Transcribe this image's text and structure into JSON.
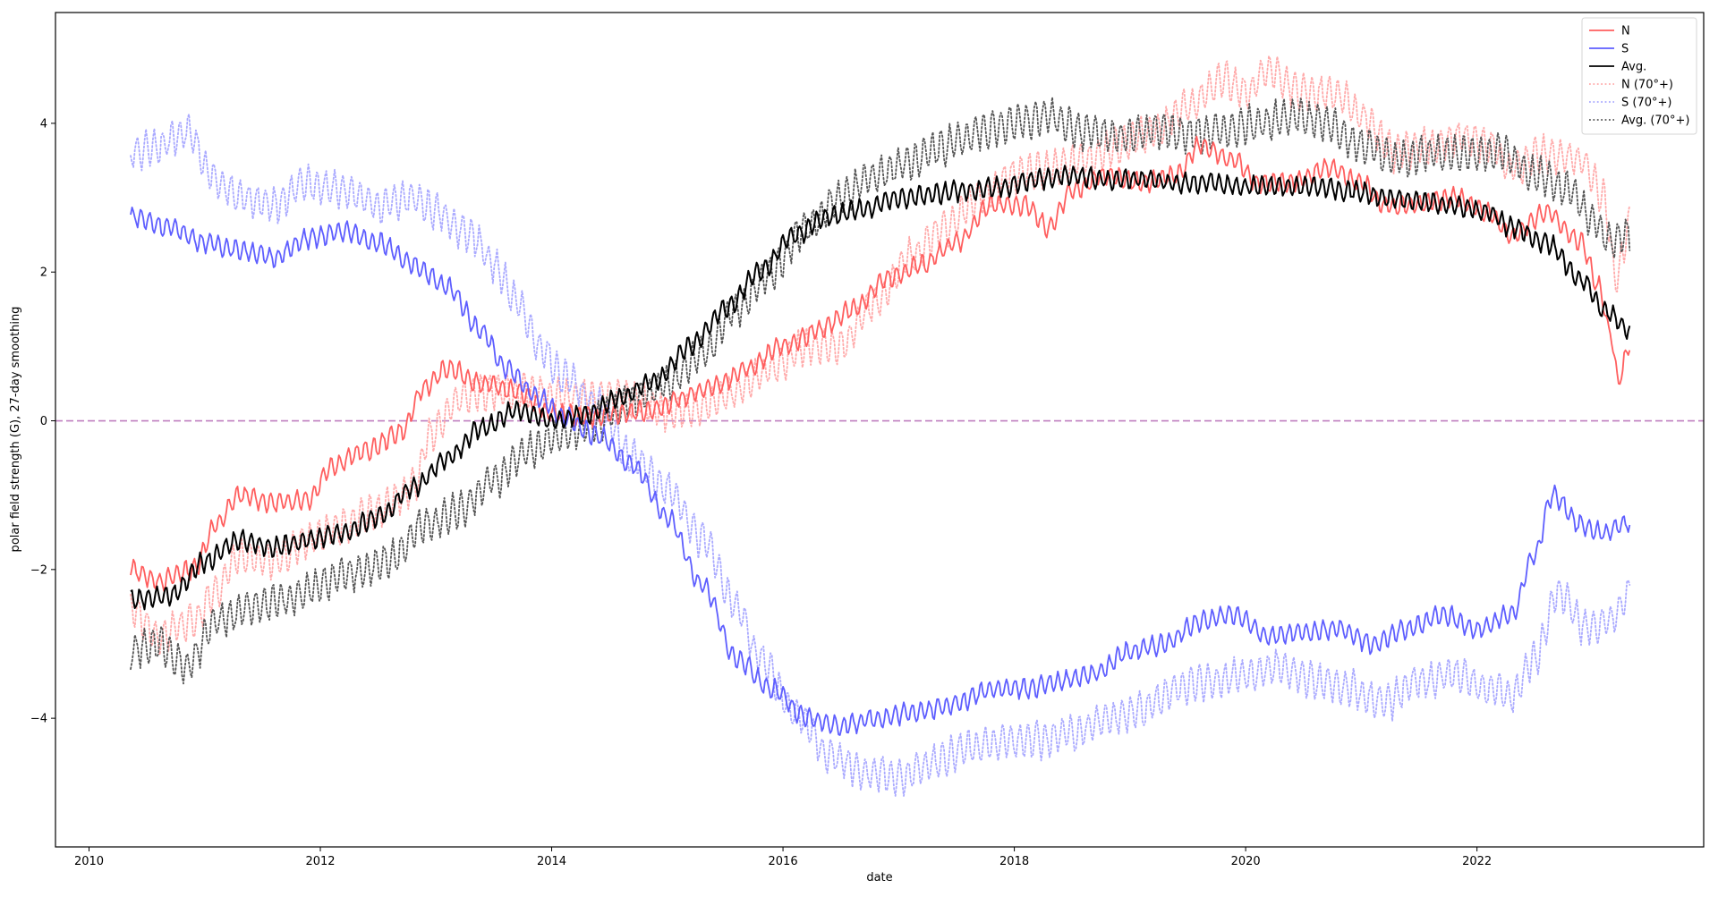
{
  "chart_data": {
    "type": "line",
    "title": "",
    "xlabel": "date",
    "ylabel": "polar field strength (G), 27-day smoothing",
    "xlim": [
      2009.71,
      2023.96
    ],
    "ylim": [
      -5.73,
      5.49
    ],
    "x_ticks": [
      2010,
      2012,
      2014,
      2016,
      2018,
      2020,
      2022
    ],
    "x_tick_labels": [
      "2010",
      "2012",
      "2014",
      "2016",
      "2018",
      "2020",
      "2022"
    ],
    "y_ticks": [
      -4,
      -2,
      0,
      2,
      4
    ],
    "y_tick_labels": [
      "−4",
      "−2",
      "0",
      "2",
      "4"
    ],
    "grid": false,
    "legend_position": "upper right",
    "reference_line": {
      "y": 0,
      "style": "dashed",
      "color": "#bf7fbf"
    },
    "series": [
      {
        "name": "N",
        "color": "#ff5e5e",
        "style": "solid",
        "width": 1.8,
        "x": [
          2010.36,
          2010.6,
          2010.9,
          2011.1,
          2011.3,
          2011.6,
          2011.9,
          2012.1,
          2012.4,
          2012.7,
          2012.9,
          2013.1,
          2013.4,
          2013.7,
          2014.0,
          2014.3,
          2014.6,
          2014.9,
          2015.1,
          2015.4,
          2015.7,
          2016.0,
          2016.3,
          2016.6,
          2016.9,
          2017.2,
          2017.5,
          2017.8,
          2018.1,
          2018.3,
          2018.5,
          2018.8,
          2019.1,
          2019.4,
          2019.6,
          2019.9,
          2020.1,
          2020.4,
          2020.7,
          2021.0,
          2021.2,
          2021.5,
          2021.8,
          2022.1,
          2022.3,
          2022.6,
          2022.9,
          2023.05,
          2023.15,
          2023.22,
          2023.33
        ],
        "values": [
          -2.0,
          -2.15,
          -2.0,
          -1.4,
          -1.0,
          -1.1,
          -1.05,
          -0.6,
          -0.4,
          -0.15,
          0.45,
          0.7,
          0.5,
          0.4,
          0.1,
          0.05,
          0.1,
          0.15,
          0.3,
          0.45,
          0.7,
          1.0,
          1.2,
          1.5,
          1.9,
          2.1,
          2.4,
          2.9,
          2.9,
          2.6,
          3.1,
          3.3,
          3.2,
          3.3,
          3.7,
          3.5,
          3.2,
          3.2,
          3.4,
          3.2,
          2.9,
          2.9,
          3.0,
          2.8,
          2.5,
          2.8,
          2.4,
          1.8,
          1.2,
          0.55,
          1.05
        ]
      },
      {
        "name": "S",
        "color": "#5e5eff",
        "style": "solid",
        "width": 1.8,
        "x": [
          2010.36,
          2010.7,
          2011.0,
          2011.3,
          2011.6,
          2011.9,
          2012.2,
          2012.5,
          2012.8,
          2013.1,
          2013.4,
          2013.6,
          2013.9,
          2014.1,
          2014.4,
          2014.7,
          2015.0,
          2015.3,
          2015.6,
          2015.9,
          2016.2,
          2016.5,
          2016.8,
          2017.2,
          2017.5,
          2017.8,
          2018.1,
          2018.4,
          2018.7,
          2019.0,
          2019.3,
          2019.6,
          2019.9,
          2020.2,
          2020.5,
          2020.8,
          2021.1,
          2021.4,
          2021.7,
          2022.0,
          2022.3,
          2022.5,
          2022.65,
          2022.9,
          2023.1,
          2023.33
        ],
        "values": [
          2.75,
          2.6,
          2.4,
          2.3,
          2.2,
          2.45,
          2.55,
          2.4,
          2.1,
          1.8,
          1.2,
          0.7,
          0.3,
          0.05,
          -0.2,
          -0.6,
          -1.3,
          -2.2,
          -3.2,
          -3.6,
          -4.0,
          -4.1,
          -4.0,
          -3.9,
          -3.8,
          -3.6,
          -3.6,
          -3.5,
          -3.4,
          -3.1,
          -3.0,
          -2.7,
          -2.6,
          -2.9,
          -2.85,
          -2.8,
          -3.0,
          -2.8,
          -2.6,
          -2.8,
          -2.6,
          -1.8,
          -1.0,
          -1.4,
          -1.5,
          -1.35
        ]
      },
      {
        "name": "Avg.",
        "color": "#000000",
        "style": "solid",
        "width": 2.0,
        "x": [
          2010.36,
          2010.7,
          2011.0,
          2011.3,
          2011.6,
          2011.9,
          2012.2,
          2012.5,
          2012.8,
          2013.1,
          2013.4,
          2013.7,
          2014.0,
          2014.3,
          2014.6,
          2014.9,
          2015.2,
          2015.5,
          2015.8,
          2016.1,
          2016.4,
          2016.7,
          2017.0,
          2017.3,
          2017.6,
          2017.9,
          2018.2,
          2018.5,
          2018.8,
          2019.1,
          2019.4,
          2019.7,
          2020.0,
          2020.3,
          2020.6,
          2020.9,
          2021.2,
          2021.5,
          2021.8,
          2022.1,
          2022.3,
          2022.6,
          2022.9,
          2023.1,
          2023.33
        ],
        "values": [
          -2.4,
          -2.35,
          -1.9,
          -1.6,
          -1.7,
          -1.6,
          -1.5,
          -1.3,
          -0.9,
          -0.5,
          -0.1,
          0.15,
          0.0,
          0.1,
          0.3,
          0.55,
          1.0,
          1.5,
          2.0,
          2.5,
          2.75,
          2.85,
          3.0,
          3.05,
          3.1,
          3.15,
          3.25,
          3.3,
          3.25,
          3.25,
          3.2,
          3.2,
          3.15,
          3.15,
          3.15,
          3.1,
          3.0,
          2.95,
          2.9,
          2.8,
          2.6,
          2.4,
          1.9,
          1.5,
          1.2
        ]
      },
      {
        "name": "N (70°+)",
        "color": "#ffaaaa",
        "style": "dotted",
        "width": 1.8,
        "x": [
          2010.36,
          2010.6,
          2010.9,
          2011.1,
          2011.3,
          2011.6,
          2011.9,
          2012.2,
          2012.5,
          2012.8,
          2012.95,
          2013.2,
          2013.5,
          2013.8,
          2014.1,
          2014.4,
          2014.7,
          2015.0,
          2015.3,
          2015.6,
          2015.9,
          2016.2,
          2016.5,
          2016.8,
          2017.1,
          2017.4,
          2017.7,
          2018.0,
          2018.3,
          2018.6,
          2018.9,
          2019.2,
          2019.5,
          2019.8,
          2020.0,
          2020.2,
          2020.5,
          2020.8,
          2021.0,
          2021.3,
          2021.6,
          2021.9,
          2022.1,
          2022.3,
          2022.6,
          2022.9,
          2023.1,
          2023.2,
          2023.33
        ],
        "values": [
          -2.5,
          -2.9,
          -2.7,
          -2.3,
          -1.8,
          -1.9,
          -1.6,
          -1.4,
          -1.2,
          -0.9,
          -0.2,
          0.3,
          0.4,
          0.4,
          0.3,
          0.35,
          0.3,
          0.1,
          0.2,
          0.4,
          0.7,
          1.0,
          1.0,
          1.6,
          2.2,
          2.6,
          3.0,
          3.3,
          3.4,
          3.5,
          3.7,
          3.9,
          4.2,
          4.6,
          4.4,
          4.7,
          4.4,
          4.4,
          4.1,
          3.6,
          3.7,
          3.8,
          3.7,
          3.4,
          3.6,
          3.5,
          3.0,
          1.9,
          2.7
        ]
      },
      {
        "name": "S (70°+)",
        "color": "#aaaaff",
        "style": "dotted",
        "width": 1.8,
        "x": [
          2010.36,
          2010.6,
          2010.85,
          2011.05,
          2011.3,
          2011.6,
          2011.9,
          2012.2,
          2012.5,
          2012.8,
          2013.0,
          2013.3,
          2013.5,
          2013.7,
          2013.9,
          2014.1,
          2014.4,
          2014.7,
          2015.0,
          2015.3,
          2015.6,
          2015.8,
          2016.1,
          2016.4,
          2016.7,
          2017.0,
          2017.3,
          2017.6,
          2017.9,
          2018.2,
          2018.5,
          2018.8,
          2019.1,
          2019.4,
          2019.7,
          2020.0,
          2020.3,
          2020.6,
          2020.9,
          2021.2,
          2021.5,
          2021.8,
          2022.1,
          2022.3,
          2022.5,
          2022.7,
          2022.95,
          2023.15,
          2023.33
        ],
        "values": [
          3.6,
          3.7,
          3.9,
          3.3,
          3.0,
          2.9,
          3.2,
          3.1,
          2.9,
          3.0,
          2.8,
          2.5,
          2.1,
          1.6,
          1.0,
          0.6,
          0.2,
          -0.5,
          -0.9,
          -1.6,
          -2.5,
          -3.2,
          -3.9,
          -4.5,
          -4.7,
          -4.8,
          -4.6,
          -4.4,
          -4.3,
          -4.3,
          -4.2,
          -4.0,
          -3.9,
          -3.6,
          -3.5,
          -3.4,
          -3.3,
          -3.5,
          -3.6,
          -3.8,
          -3.5,
          -3.4,
          -3.6,
          -3.7,
          -3.2,
          -2.3,
          -2.8,
          -2.7,
          -2.3
        ]
      },
      {
        "name": "Avg. (70°+)",
        "color": "#555555",
        "style": "dotted",
        "width": 1.8,
        "x": [
          2010.36,
          2010.6,
          2010.85,
          2011.1,
          2011.4,
          2011.7,
          2012.0,
          2012.3,
          2012.6,
          2012.9,
          2013.2,
          2013.5,
          2013.8,
          2014.1,
          2014.4,
          2014.7,
          2015.0,
          2015.3,
          2015.6,
          2015.9,
          2016.2,
          2016.5,
          2016.8,
          2017.1,
          2017.4,
          2017.7,
          2018.0,
          2018.3,
          2018.6,
          2018.9,
          2019.2,
          2019.5,
          2019.8,
          2020.1,
          2020.4,
          2020.7,
          2021.0,
          2021.3,
          2021.6,
          2021.9,
          2022.2,
          2022.5,
          2022.8,
          2023.0,
          2023.15,
          2023.33
        ],
        "values": [
          -3.1,
          -3.0,
          -3.3,
          -2.7,
          -2.5,
          -2.4,
          -2.2,
          -2.05,
          -1.85,
          -1.4,
          -1.2,
          -0.8,
          -0.4,
          -0.2,
          0.0,
          0.3,
          0.5,
          0.9,
          1.5,
          2.0,
          2.6,
          3.0,
          3.3,
          3.5,
          3.7,
          3.9,
          4.0,
          4.1,
          3.9,
          3.8,
          3.9,
          3.85,
          3.9,
          4.0,
          4.1,
          4.0,
          3.7,
          3.5,
          3.6,
          3.6,
          3.6,
          3.3,
          3.1,
          2.7,
          2.4,
          2.5
        ]
      }
    ]
  },
  "legend": {
    "items": [
      {
        "label": "N",
        "color": "#ff5e5e",
        "style": "solid"
      },
      {
        "label": "S",
        "color": "#5e5eff",
        "style": "solid"
      },
      {
        "label": "Avg.",
        "color": "#000000",
        "style": "solid"
      },
      {
        "label": "N (70°+)",
        "color": "#ffaaaa",
        "style": "dotted"
      },
      {
        "label": "S (70°+)",
        "color": "#aaaaff",
        "style": "dotted"
      },
      {
        "label": "Avg. (70°+)",
        "color": "#555555",
        "style": "dotted"
      }
    ]
  }
}
